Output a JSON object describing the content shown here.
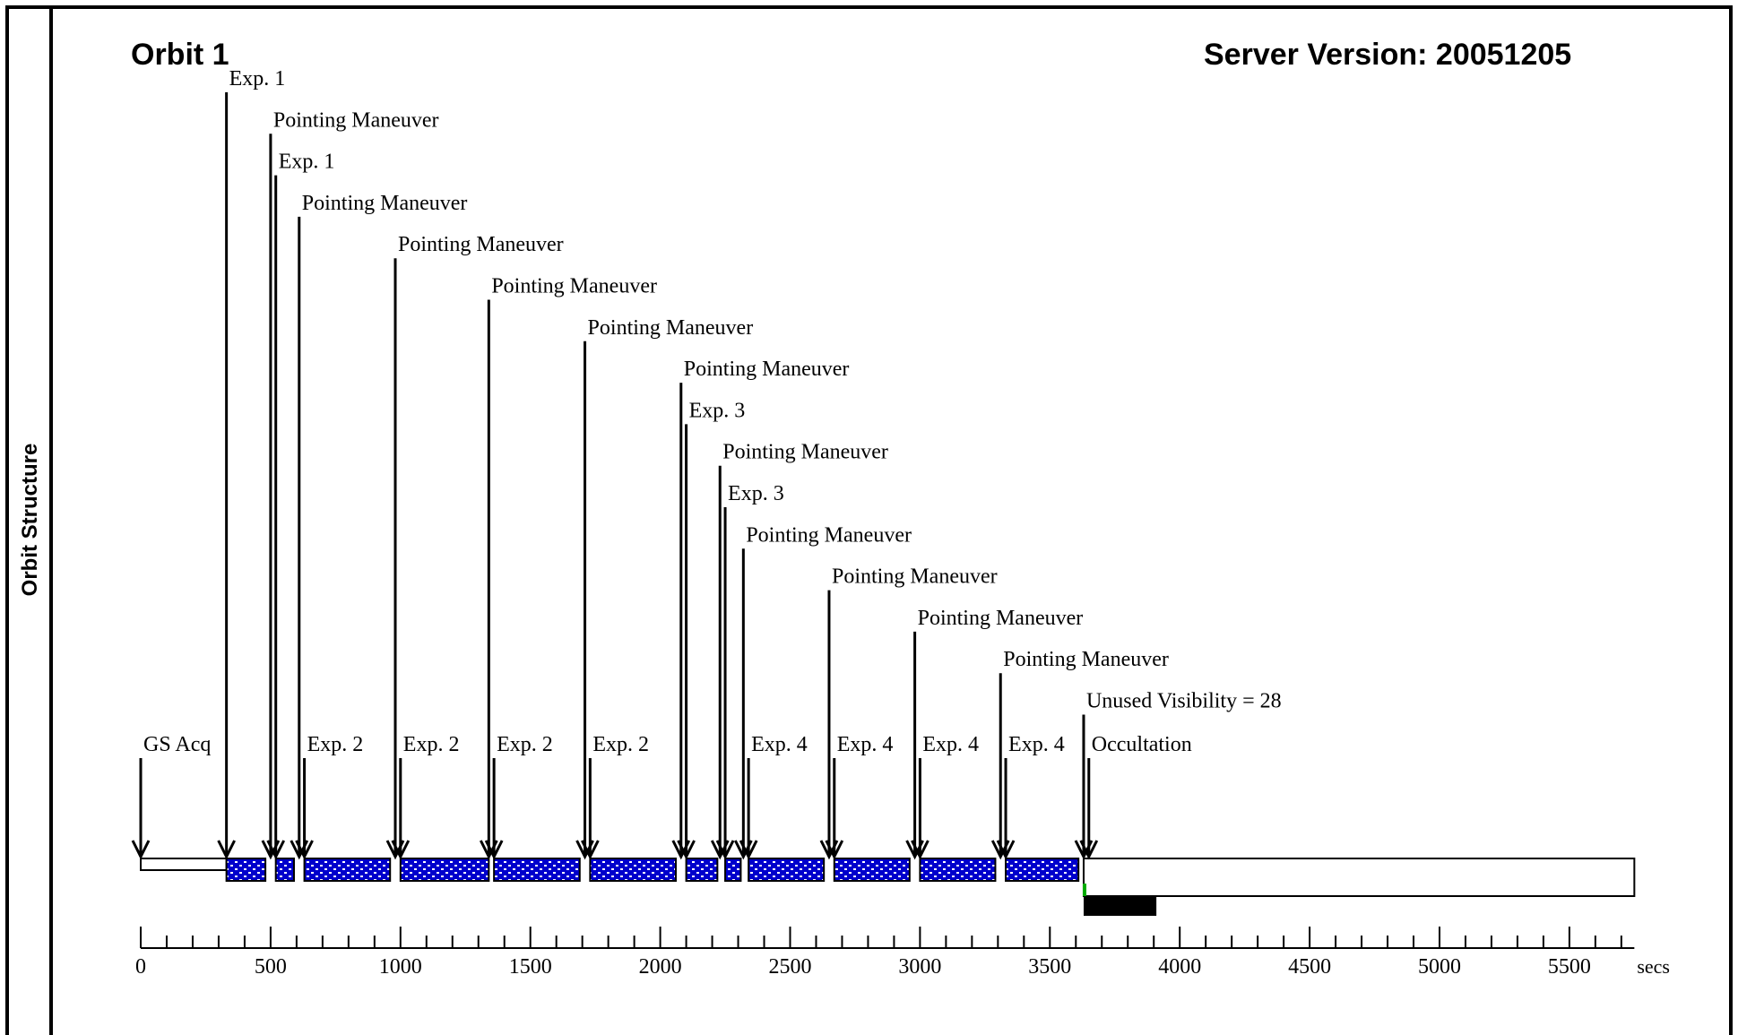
{
  "side_title": "Orbit Structure",
  "orbit_title": "Orbit 1",
  "server_version": "Server Version: 20051205",
  "chart_data": {
    "type": "timeline",
    "xunit": "secs",
    "xlim": [
      0,
      5800
    ],
    "xticks": [
      0,
      500,
      1000,
      1500,
      2000,
      2500,
      3000,
      3500,
      4000,
      4500,
      5000,
      5500
    ],
    "minor_tick_step": 100,
    "bar_end": 5750,
    "events": [
      {
        "label": "GS Acq",
        "t": 0
      },
      {
        "label": "Exp. 1",
        "t": 330
      },
      {
        "label": "Pointing Maneuver",
        "t": 500
      },
      {
        "label": "Exp. 1",
        "t": 520
      },
      {
        "label": "Pointing Maneuver",
        "t": 610
      },
      {
        "label": "Exp. 2",
        "t": 630
      },
      {
        "label": "Pointing Maneuver",
        "t": 980
      },
      {
        "label": "Exp. 2",
        "t": 1000
      },
      {
        "label": "Pointing Maneuver",
        "t": 1340
      },
      {
        "label": "Exp. 2",
        "t": 1360
      },
      {
        "label": "Pointing Maneuver",
        "t": 1710
      },
      {
        "label": "Exp. 2",
        "t": 1730
      },
      {
        "label": "Pointing Maneuver",
        "t": 2080
      },
      {
        "label": "Exp. 3",
        "t": 2100
      },
      {
        "label": "Pointing Maneuver",
        "t": 2230
      },
      {
        "label": "Exp. 3",
        "t": 2250
      },
      {
        "label": "Pointing Maneuver",
        "t": 2320
      },
      {
        "label": "Exp. 4",
        "t": 2340
      },
      {
        "label": "Pointing Maneuver",
        "t": 2650
      },
      {
        "label": "Exp. 4",
        "t": 2670
      },
      {
        "label": "Pointing Maneuver",
        "t": 2980
      },
      {
        "label": "Exp. 4",
        "t": 3000
      },
      {
        "label": "Pointing Maneuver",
        "t": 3310
      },
      {
        "label": "Exp. 4",
        "t": 3330
      },
      {
        "label": "Unused Visibility = 28",
        "t": 3630
      },
      {
        "label": "Occultation",
        "t": 3650
      }
    ],
    "exposures": [
      [
        330,
        480
      ],
      [
        520,
        590
      ],
      [
        630,
        960
      ],
      [
        1000,
        1340
      ],
      [
        1360,
        1690
      ],
      [
        1730,
        2060
      ],
      [
        2100,
        2220
      ],
      [
        2250,
        2310
      ],
      [
        2340,
        2630
      ],
      [
        2670,
        2960
      ],
      [
        3000,
        3290
      ],
      [
        3330,
        3610
      ]
    ],
    "occultation_bar": [
      3630,
      3910
    ]
  }
}
